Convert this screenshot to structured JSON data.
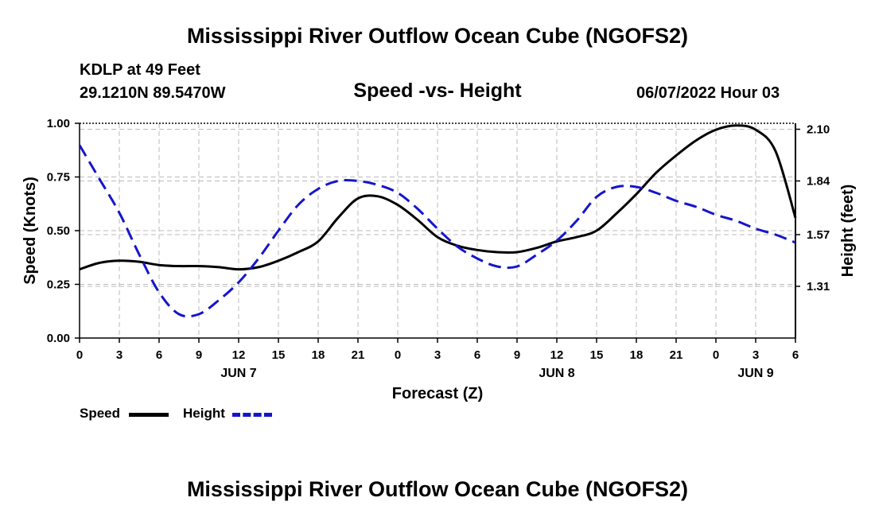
{
  "page": {
    "top_title": "Mississippi River Outflow Ocean Cube (NGOFS2)",
    "bottom_title": "Mississippi River Outflow Ocean Cube (NGOFS2)",
    "station": "KDLP at 49 Feet",
    "coords": "29.1210N  89.5470W",
    "datetime": "06/07/2022 Hour 03"
  },
  "chart_data": {
    "type": "line",
    "title": "Speed -vs- Height",
    "xlabel": "Forecast (Z)",
    "ylabel": "Speed (Knots)",
    "y2label": "Height (feet)",
    "ylim": [
      0,
      1.0
    ],
    "y2lim": [
      1.05,
      2.13
    ],
    "x_range_hours": [
      0,
      54
    ],
    "yticks": [
      "0.00",
      "0.25",
      "0.50",
      "0.75",
      "1.00"
    ],
    "y2ticks": [
      "1.31",
      "1.57",
      "1.84",
      "2.10"
    ],
    "xtick_labels": [
      "0",
      "3",
      "6",
      "9",
      "12",
      "15",
      "18",
      "21",
      "0",
      "3",
      "6",
      "9",
      "12",
      "15",
      "18",
      "21",
      "0",
      "3",
      "6"
    ],
    "day_labels": [
      {
        "label": "JUN 7",
        "hour": 12
      },
      {
        "label": "JUN 8",
        "hour": 36
      },
      {
        "label": "JUN 9",
        "hour": 51
      }
    ],
    "series": [
      {
        "name": "Speed",
        "axis": "left",
        "color": "#000000",
        "style": "solid",
        "x": [
          0,
          1.5,
          3,
          4.5,
          6,
          7.5,
          9,
          10.5,
          12,
          13.5,
          15,
          16.5,
          18,
          19.5,
          21,
          22.5,
          24,
          25.5,
          27,
          28.5,
          30,
          31.5,
          33,
          34.5,
          36,
          37.5,
          39,
          40.5,
          42,
          43.5,
          45,
          46.5,
          48,
          49.5,
          51,
          52.5,
          54
        ],
        "values": [
          0.32,
          0.35,
          0.36,
          0.355,
          0.34,
          0.335,
          0.335,
          0.33,
          0.32,
          0.33,
          0.36,
          0.4,
          0.45,
          0.56,
          0.65,
          0.66,
          0.62,
          0.55,
          0.47,
          0.43,
          0.41,
          0.4,
          0.4,
          0.42,
          0.45,
          0.47,
          0.5,
          0.58,
          0.67,
          0.77,
          0.85,
          0.92,
          0.97,
          0.99,
          0.97,
          0.87,
          0.56
        ]
      },
      {
        "name": "Height",
        "axis": "right",
        "color": "#1515cc",
        "style": "dashed",
        "x": [
          0,
          1.5,
          3,
          4.5,
          6,
          7.5,
          9,
          10.5,
          12,
          13.5,
          15,
          16.5,
          18,
          19.5,
          21,
          22.5,
          24,
          25.5,
          27,
          28.5,
          30,
          31.5,
          33,
          34.5,
          36,
          37.5,
          39,
          40.5,
          42,
          43.5,
          45,
          46.5,
          48,
          49.5,
          51,
          52.5,
          54
        ],
        "values": [
          2.02,
          1.85,
          1.68,
          1.47,
          1.28,
          1.17,
          1.17,
          1.24,
          1.33,
          1.45,
          1.59,
          1.72,
          1.8,
          1.84,
          1.84,
          1.82,
          1.78,
          1.7,
          1.6,
          1.51,
          1.45,
          1.41,
          1.41,
          1.47,
          1.54,
          1.64,
          1.76,
          1.81,
          1.81,
          1.78,
          1.74,
          1.71,
          1.67,
          1.64,
          1.6,
          1.57,
          1.53
        ]
      }
    ],
    "legend": [
      {
        "label": "Speed",
        "color": "#000000",
        "style": "solid"
      },
      {
        "label": "Height",
        "color": "#1515cc",
        "style": "dashed"
      }
    ]
  }
}
